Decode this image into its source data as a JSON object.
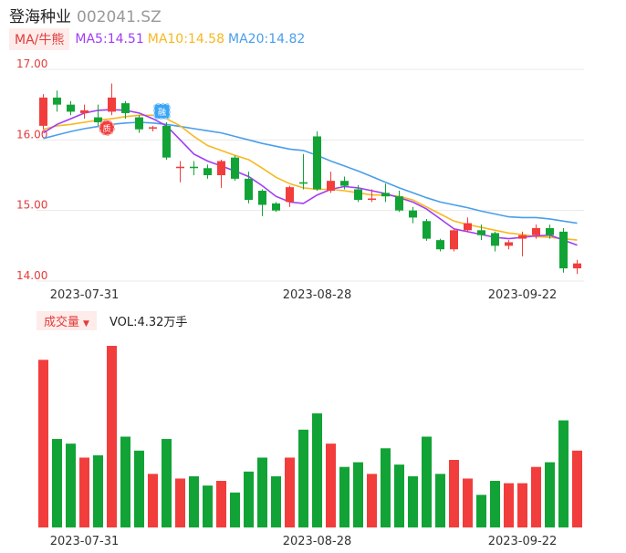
{
  "header": {
    "name": "登海种业",
    "code": "002041.SZ"
  },
  "ma_bar": {
    "button": "MA/牛熊",
    "ma5": "MA5:14.51",
    "ma10": "MA10:14.58",
    "ma20": "MA20:14.82"
  },
  "volume_bar": {
    "button": "成交量",
    "text": "VOL:4.32万手"
  },
  "colors": {
    "up": "#f23d3d",
    "down": "#12a336",
    "ma5": "#a13cf5",
    "ma10": "#f7b820",
    "ma20": "#4a9eeb"
  },
  "chart_data": {
    "type": "candlestick",
    "y_ticks": [
      "17.00",
      "16.00",
      "15.00",
      "14.00"
    ],
    "ylim": [
      14.0,
      17.0
    ],
    "x_date_labels": [
      {
        "index": 3,
        "label": "2023-07-31"
      },
      {
        "index": 20,
        "label": "2023-08-28"
      },
      {
        "index": 35,
        "label": "2023-09-22"
      }
    ],
    "candles": [
      {
        "o": 16.2,
        "c": 16.6,
        "h": 16.65,
        "l": 16.15,
        "v": 0.72
      },
      {
        "o": 16.6,
        "c": 16.5,
        "h": 16.7,
        "l": 16.4,
        "v": 0.38
      },
      {
        "o": 16.5,
        "c": 16.4,
        "h": 16.55,
        "l": 16.35,
        "v": 0.36
      },
      {
        "o": 16.38,
        "c": 16.42,
        "h": 16.5,
        "l": 16.3,
        "v": 0.3
      },
      {
        "o": 16.32,
        "c": 16.25,
        "h": 16.5,
        "l": 16.2,
        "v": 0.31
      },
      {
        "o": 16.4,
        "c": 16.6,
        "h": 16.8,
        "l": 16.35,
        "v": 0.78
      },
      {
        "o": 16.52,
        "c": 16.38,
        "h": 16.55,
        "l": 16.3,
        "v": 0.39
      },
      {
        "o": 16.32,
        "c": 16.15,
        "h": 16.35,
        "l": 16.1,
        "v": 0.33
      },
      {
        "o": 16.16,
        "c": 16.18,
        "h": 16.2,
        "l": 16.12,
        "v": 0.23
      },
      {
        "o": 16.2,
        "c": 15.75,
        "h": 16.25,
        "l": 15.72,
        "v": 0.38
      },
      {
        "o": 15.6,
        "c": 15.62,
        "h": 15.7,
        "l": 15.4,
        "v": 0.21
      },
      {
        "o": 15.62,
        "c": 15.6,
        "h": 15.7,
        "l": 15.5,
        "v": 0.22
      },
      {
        "o": 15.6,
        "c": 15.5,
        "h": 15.65,
        "l": 15.45,
        "v": 0.18
      },
      {
        "o": 15.5,
        "c": 15.7,
        "h": 15.72,
        "l": 15.32,
        "v": 0.2
      },
      {
        "o": 15.75,
        "c": 15.45,
        "h": 15.78,
        "l": 15.42,
        "v": 0.15
      },
      {
        "o": 15.45,
        "c": 15.15,
        "h": 15.55,
        "l": 15.1,
        "v": 0.24
      },
      {
        "o": 15.28,
        "c": 15.08,
        "h": 15.3,
        "l": 14.92,
        "v": 0.3
      },
      {
        "o": 15.1,
        "c": 15.0,
        "h": 15.12,
        "l": 14.98,
        "v": 0.22
      },
      {
        "o": 15.12,
        "c": 15.33,
        "h": 15.35,
        "l": 15.05,
        "v": 0.3
      },
      {
        "o": 15.4,
        "c": 15.38,
        "h": 15.8,
        "l": 15.3,
        "v": 0.42
      },
      {
        "o": 16.05,
        "c": 15.3,
        "h": 16.12,
        "l": 15.28,
        "v": 0.49
      },
      {
        "o": 15.28,
        "c": 15.42,
        "h": 15.55,
        "l": 15.25,
        "v": 0.36
      },
      {
        "o": 15.42,
        "c": 15.35,
        "h": 15.48,
        "l": 15.3,
        "v": 0.26
      },
      {
        "o": 15.3,
        "c": 15.15,
        "h": 15.36,
        "l": 15.12,
        "v": 0.28
      },
      {
        "o": 15.15,
        "c": 15.17,
        "h": 15.3,
        "l": 15.12,
        "v": 0.23
      },
      {
        "o": 15.25,
        "c": 15.2,
        "h": 15.38,
        "l": 15.12,
        "v": 0.34
      },
      {
        "o": 15.2,
        "c": 15.0,
        "h": 15.28,
        "l": 14.98,
        "v": 0.27
      },
      {
        "o": 15.0,
        "c": 14.9,
        "h": 15.05,
        "l": 14.82,
        "v": 0.22
      },
      {
        "o": 14.85,
        "c": 14.6,
        "h": 14.88,
        "l": 14.57,
        "v": 0.39
      },
      {
        "o": 14.58,
        "c": 14.45,
        "h": 14.6,
        "l": 14.42,
        "v": 0.23
      },
      {
        "o": 14.45,
        "c": 14.72,
        "h": 14.75,
        "l": 14.42,
        "v": 0.29
      },
      {
        "o": 14.72,
        "c": 14.82,
        "h": 14.9,
        "l": 14.7,
        "v": 0.21
      },
      {
        "o": 14.72,
        "c": 14.65,
        "h": 14.8,
        "l": 14.58,
        "v": 0.14
      },
      {
        "o": 14.68,
        "c": 14.5,
        "h": 14.7,
        "l": 14.42,
        "v": 0.2
      },
      {
        "o": 14.5,
        "c": 14.55,
        "h": 14.58,
        "l": 14.45,
        "v": 0.19
      },
      {
        "o": 14.6,
        "c": 14.65,
        "h": 14.7,
        "l": 14.35,
        "v": 0.19
      },
      {
        "o": 14.65,
        "c": 14.75,
        "h": 14.8,
        "l": 14.6,
        "v": 0.26
      },
      {
        "o": 14.75,
        "c": 14.65,
        "h": 14.8,
        "l": 14.6,
        "v": 0.28
      },
      {
        "o": 14.7,
        "c": 14.18,
        "h": 14.75,
        "l": 14.12,
        "v": 0.46
      },
      {
        "o": 14.18,
        "c": 14.25,
        "h": 14.3,
        "l": 14.1,
        "v": 0.33
      }
    ],
    "ma5": [
      16.1,
      16.22,
      16.3,
      16.38,
      16.42,
      16.43,
      16.42,
      16.38,
      16.3,
      16.2,
      16.0,
      15.8,
      15.7,
      15.63,
      15.56,
      15.48,
      15.35,
      15.2,
      15.12,
      15.1,
      15.22,
      15.3,
      15.34,
      15.32,
      15.28,
      15.24,
      15.18,
      15.12,
      15.02,
      14.88,
      14.74,
      14.7,
      14.66,
      14.62,
      14.6,
      14.62,
      14.64,
      14.65,
      14.58,
      14.51
    ],
    "ma10": [
      16.15,
      16.2,
      16.22,
      16.25,
      16.28,
      16.3,
      16.33,
      16.35,
      16.35,
      16.3,
      16.2,
      16.05,
      15.92,
      15.85,
      15.78,
      15.72,
      15.6,
      15.47,
      15.38,
      15.32,
      15.3,
      15.3,
      15.28,
      15.25,
      15.22,
      15.22,
      15.2,
      15.15,
      15.05,
      14.95,
      14.85,
      14.8,
      14.76,
      14.72,
      14.68,
      14.66,
      14.63,
      14.62,
      14.6,
      14.58
    ],
    "ma20": [
      16.02,
      16.07,
      16.12,
      16.16,
      16.19,
      16.22,
      16.24,
      16.25,
      16.24,
      16.22,
      16.19,
      16.16,
      16.13,
      16.1,
      16.05,
      16.0,
      15.95,
      15.91,
      15.87,
      15.85,
      15.78,
      15.7,
      15.63,
      15.56,
      15.48,
      15.4,
      15.32,
      15.25,
      15.18,
      15.12,
      15.08,
      15.04,
      14.99,
      14.95,
      14.91,
      14.9,
      14.9,
      14.88,
      14.85,
      14.82
    ]
  }
}
